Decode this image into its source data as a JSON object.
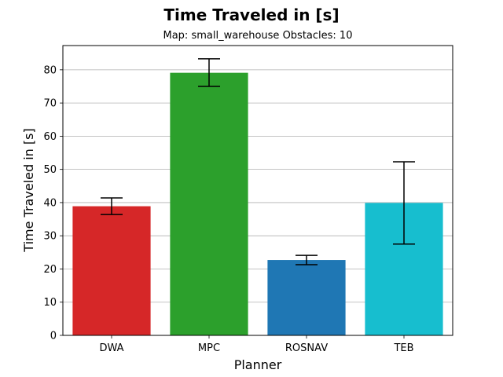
{
  "chart_data": {
    "type": "bar",
    "title": "Time Traveled in [s]",
    "subtitle": "Map: small_warehouse Obstacles: 10",
    "xlabel": "Planner",
    "ylabel": "Time Traveled in [s]",
    "categories": [
      "DWA",
      "MPC",
      "ROSNAV",
      "TEB"
    ],
    "values": [
      38.9,
      79.1,
      22.7,
      39.9
    ],
    "error_low": [
      36.4,
      75.0,
      21.3,
      27.5
    ],
    "error_high": [
      41.4,
      83.3,
      24.1,
      52.3
    ],
    "colors": [
      "#d62728",
      "#2ca02c",
      "#1f77b4",
      "#17becf"
    ],
    "ylim": [
      0,
      87.3
    ],
    "yticks": [
      "0",
      "10",
      "20",
      "30",
      "40",
      "50",
      "60",
      "70",
      "80"
    ],
    "grid": "horizontal"
  }
}
